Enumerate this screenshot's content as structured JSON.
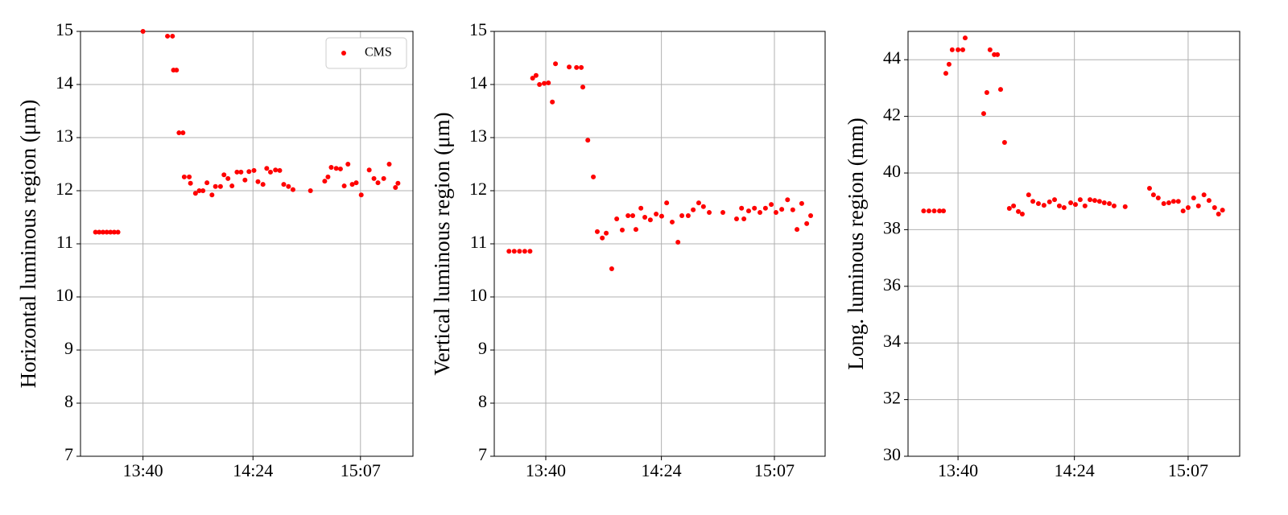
{
  "chart_data": [
    {
      "type": "scatter",
      "ylabel": "Horizontal luminous region (μm)",
      "legend": "upper right",
      "grid": true,
      "xlim": [
        795,
        928
      ],
      "xticks": [
        {
          "value": 820,
          "label": "13:40"
        },
        {
          "value": 864,
          "label": "14:24"
        },
        {
          "value": 907,
          "label": "15:07"
        }
      ],
      "ylim": [
        7,
        15
      ],
      "yticks": [
        7,
        8,
        9,
        10,
        11,
        12,
        13,
        14,
        15
      ],
      "x": [
        801,
        802.5,
        804,
        805.5,
        807,
        808.5,
        810,
        820,
        829.8,
        831.8,
        832.2,
        833.4,
        834.4,
        836,
        836.5,
        838.5,
        839,
        841,
        842.5,
        844,
        845.6,
        847.6,
        849,
        851,
        852.4,
        854,
        855.6,
        857.6,
        859.2,
        860.8,
        862.4,
        864.4,
        866,
        868,
        869.5,
        871,
        873,
        874.7,
        876.3,
        878.2,
        880,
        887,
        892.7,
        894,
        895.3,
        897.3,
        899,
        900.5,
        902,
        903.7,
        905.3,
        907.3,
        910.5,
        912.4,
        914,
        916.3,
        918.5,
        921,
        922
      ],
      "series": [
        {
          "name": "CMS",
          "color": "#ff0000",
          "values": [
            11.22,
            11.22,
            11.22,
            11.22,
            11.22,
            11.22,
            11.22,
            15,
            14.91,
            14.91,
            14.27,
            14.27,
            13.09,
            13.09,
            12.26,
            12.26,
            12.14,
            11.95,
            12,
            12,
            12.15,
            11.92,
            12.08,
            12.08,
            12.3,
            12.23,
            12.09,
            12.35,
            12.35,
            12.2,
            12.36,
            12.38,
            12.17,
            12.12,
            12.42,
            12.35,
            12.39,
            12.38,
            12.12,
            12.08,
            12.02,
            12,
            12.18,
            12.26,
            12.44,
            12.42,
            12.41,
            12.09,
            12.5,
            12.12,
            12.15,
            11.92,
            12.39,
            12.23,
            12.15,
            12.23,
            12.5,
            12.06,
            12.14
          ]
        }
      ]
    },
    {
      "type": "scatter",
      "ylabel": "Vertical luminous region (μm)",
      "grid": true,
      "xlim": [
        800.4,
        926.3
      ],
      "xticks": [
        {
          "value": 820,
          "label": "13:40"
        },
        {
          "value": 864,
          "label": "14:24"
        },
        {
          "value": 907,
          "label": "15:07"
        }
      ],
      "ylim": [
        7,
        15
      ],
      "yticks": [
        7,
        8,
        9,
        10,
        11,
        12,
        13,
        14,
        15
      ],
      "x": [
        806,
        808,
        810,
        812,
        814,
        815,
        816.3,
        817.6,
        819.4,
        821,
        822.5,
        823.7,
        828.9,
        831.7,
        833.5,
        834.1,
        836,
        838.1,
        839.6,
        841.5,
        843,
        845.1,
        847,
        849.1,
        851.3,
        853.1,
        854.3,
        856.2,
        857.7,
        859.8,
        862,
        864.1,
        866,
        868.1,
        870.3,
        871.8,
        874.2,
        876.1,
        878.2,
        880,
        882.2,
        887.4,
        892.6,
        894.5,
        895.4,
        897.2,
        899.4,
        901.5,
        903.6,
        905.8,
        907.6,
        909.8,
        912,
        914,
        915.6,
        917.4,
        919.3,
        920.8
      ],
      "series": [
        {
          "color": "#ff0000",
          "values": [
            10.86,
            10.86,
            10.86,
            10.86,
            10.86,
            14.12,
            14.17,
            14,
            14.02,
            14.03,
            13.67,
            14.39,
            14.33,
            14.32,
            14.32,
            13.95,
            12.95,
            12.26,
            11.23,
            11.11,
            11.2,
            10.53,
            11.47,
            11.26,
            11.53,
            11.53,
            11.27,
            11.67,
            11.5,
            11.45,
            11.56,
            11.52,
            11.77,
            11.41,
            11.03,
            11.53,
            11.53,
            11.64,
            11.77,
            11.7,
            11.59,
            11.59,
            11.47,
            11.67,
            11.47,
            11.62,
            11.67,
            11.59,
            11.67,
            11.74,
            11.59,
            11.65,
            11.83,
            11.64,
            11.27,
            11.76,
            11.38,
            11.53
          ]
        }
      ]
    },
    {
      "type": "scatter",
      "ylabel": "Long. luminous region (mm)",
      "grid": true,
      "xlim": [
        801.1,
        926.5
      ],
      "xticks": [
        {
          "value": 820,
          "label": "13:40"
        },
        {
          "value": 864,
          "label": "14:24"
        },
        {
          "value": 907,
          "label": "15:07"
        }
      ],
      "ylim": [
        30,
        45
      ],
      "yticks": [
        30,
        32,
        34,
        36,
        38,
        40,
        42,
        44
      ],
      "x": [
        807,
        809,
        811,
        813,
        814.5,
        815.4,
        816.6,
        817.8,
        820,
        821.8,
        822.7,
        829.7,
        830.9,
        832.1,
        833.7,
        834.9,
        836.1,
        837.6,
        839.4,
        841,
        842.8,
        844.3,
        846.7,
        848.3,
        850.4,
        852.5,
        854.6,
        856.5,
        858.3,
        860.1,
        862.6,
        864.4,
        866.2,
        868,
        869.9,
        871.7,
        873.5,
        875.3,
        877.2,
        879,
        883.2,
        892.4,
        893.9,
        895.7,
        897.8,
        899.7,
        901.5,
        903.3,
        905.1,
        907,
        909.1,
        910.9,
        913,
        914.9,
        917,
        918.5,
        920
      ],
      "series": [
        {
          "color": "#ff0000",
          "values": [
            38.66,
            38.66,
            38.66,
            38.66,
            38.66,
            43.52,
            43.84,
            44.35,
            44.35,
            44.35,
            44.77,
            42.1,
            42.84,
            44.35,
            44.18,
            44.18,
            42.95,
            41.08,
            38.75,
            38.84,
            38.64,
            38.55,
            39.23,
            39,
            38.92,
            38.86,
            38.98,
            39.06,
            38.84,
            38.78,
            38.95,
            38.89,
            39.06,
            38.84,
            39.06,
            39.03,
            39,
            38.95,
            38.92,
            38.84,
            38.81,
            39.46,
            39.23,
            39.12,
            38.92,
            38.95,
            39,
            39,
            38.66,
            38.78,
            39.12,
            38.84,
            39.23,
            39.03,
            38.78,
            38.55,
            38.69
          ]
        }
      ]
    }
  ]
}
